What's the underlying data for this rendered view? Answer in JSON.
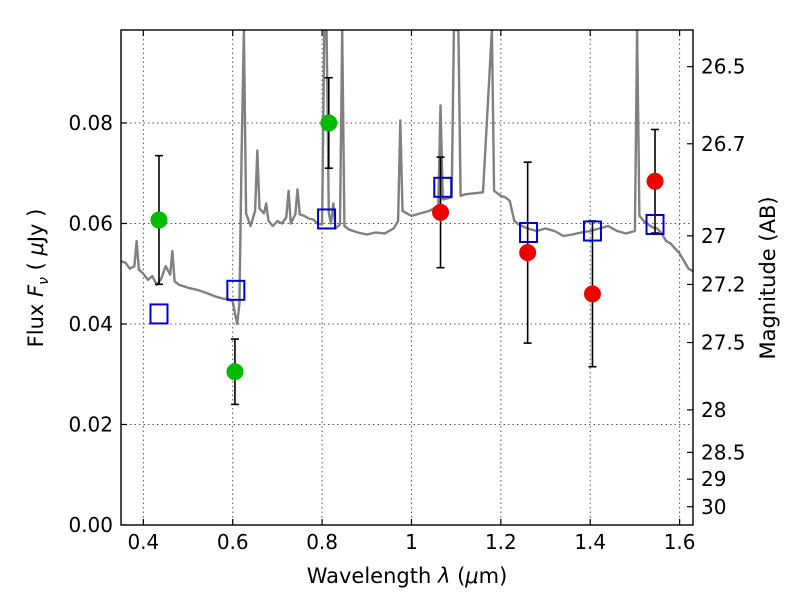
{
  "chart_data": {
    "type": "scatter",
    "title": "",
    "xlabel": "Wavelength  λ (μm)",
    "ylabel": "Flux  F_ν  ( μJy )",
    "ylabel_parts": [
      "Flux  ",
      "F",
      "ν",
      "  ( ",
      "μ",
      "Jy )"
    ],
    "xlabel_parts": [
      "Wavelength  ",
      "λ",
      " (",
      "μ",
      "m)"
    ],
    "y2label": "Magnitude (AB)",
    "xlim": [
      0.35,
      1.63
    ],
    "ylim": [
      0.0,
      0.0985
    ],
    "grid": true,
    "x_ticks": [
      {
        "value": 0.4,
        "label": "0.4"
      },
      {
        "value": 0.6,
        "label": "0.6"
      },
      {
        "value": 0.8,
        "label": "0.8"
      },
      {
        "value": 1.0,
        "label": "1"
      },
      {
        "value": 1.2,
        "label": "1.2"
      },
      {
        "value": 1.4,
        "label": "1.4"
      },
      {
        "value": 1.6,
        "label": "1.6"
      }
    ],
    "y_ticks": [
      {
        "value": 0.0,
        "label": "0.00"
      },
      {
        "value": 0.02,
        "label": "0.02"
      },
      {
        "value": 0.04,
        "label": "0.04"
      },
      {
        "value": 0.06,
        "label": "0.06"
      },
      {
        "value": 0.08,
        "label": "0.08"
      }
    ],
    "y2_ticks": [
      {
        "value": 26.5,
        "label": "26.5"
      },
      {
        "value": 26.7,
        "label": "26.7"
      },
      {
        "value": 27,
        "label": "27"
      },
      {
        "value": 27.2,
        "label": "27.2"
      },
      {
        "value": 27.5,
        "label": "27.5"
      },
      {
        "value": 28,
        "label": "28"
      },
      {
        "value": 28.5,
        "label": "28.5"
      },
      {
        "value": 29,
        "label": "29"
      },
      {
        "value": 30,
        "label": "30"
      }
    ],
    "colors": {
      "spectrum": "#808080",
      "green_points": "#00bb00",
      "red_points": "#ee0000",
      "model_squares": "#0000cc",
      "error_bars": "#000000"
    },
    "series": [
      {
        "marker": "circle",
        "color": "#00bb00",
        "points": [
          {
            "x": 0.435,
            "y": 0.0607,
            "yerr": 0.0128
          },
          {
            "x": 0.605,
            "y": 0.0305,
            "yerr": 0.0065
          },
          {
            "x": 0.815,
            "y": 0.08,
            "yerr": 0.009
          }
        ]
      },
      {
        "marker": "circle",
        "color": "#ee0000",
        "points": [
          {
            "x": 1.065,
            "y": 0.0622,
            "yerr": 0.011
          },
          {
            "x": 1.26,
            "y": 0.0542,
            "yerr": 0.018
          },
          {
            "x": 1.405,
            "y": 0.046,
            "yerr": 0.0145
          },
          {
            "x": 1.545,
            "y": 0.0684,
            "yerr": 0.0103
          }
        ]
      },
      {
        "marker": "square",
        "color": "#0000cc",
        "points": [
          {
            "x": 0.435,
            "y": 0.042
          },
          {
            "x": 0.607,
            "y": 0.0467
          },
          {
            "x": 0.81,
            "y": 0.0609
          },
          {
            "x": 1.07,
            "y": 0.0672
          },
          {
            "x": 1.262,
            "y": 0.0582
          },
          {
            "x": 1.405,
            "y": 0.0585
          },
          {
            "x": 1.545,
            "y": 0.0598
          }
        ]
      },
      {
        "type": "line",
        "color": "#808080",
        "points": [
          [
            0.35,
            0.0525
          ],
          [
            0.36,
            0.0522
          ],
          [
            0.37,
            0.051
          ],
          [
            0.38,
            0.0515
          ],
          [
            0.385,
            0.0565
          ],
          [
            0.39,
            0.0508
          ],
          [
            0.4,
            0.05
          ],
          [
            0.41,
            0.0488
          ],
          [
            0.42,
            0.0495
          ],
          [
            0.43,
            0.0478
          ],
          [
            0.44,
            0.049
          ],
          [
            0.45,
            0.0515
          ],
          [
            0.46,
            0.0498
          ],
          [
            0.465,
            0.0545
          ],
          [
            0.47,
            0.0485
          ],
          [
            0.48,
            0.0478
          ],
          [
            0.5,
            0.0472
          ],
          [
            0.52,
            0.0468
          ],
          [
            0.54,
            0.0462
          ],
          [
            0.56,
            0.0455
          ],
          [
            0.58,
            0.045
          ],
          [
            0.59,
            0.045
          ],
          [
            0.6,
            0.0445
          ],
          [
            0.605,
            0.042
          ],
          [
            0.61,
            0.04
          ],
          [
            0.615,
            0.044
          ],
          [
            0.62,
            0.075
          ],
          [
            0.625,
            0.0985
          ],
          [
            0.63,
            0.062
          ],
          [
            0.64,
            0.0595
          ],
          [
            0.65,
            0.0625
          ],
          [
            0.655,
            0.0745
          ],
          [
            0.66,
            0.063
          ],
          [
            0.67,
            0.062
          ],
          [
            0.675,
            0.064
          ],
          [
            0.68,
            0.0605
          ],
          [
            0.69,
            0.0595
          ],
          [
            0.7,
            0.0605
          ],
          [
            0.71,
            0.06
          ],
          [
            0.72,
            0.0612
          ],
          [
            0.725,
            0.0665
          ],
          [
            0.73,
            0.06
          ],
          [
            0.74,
            0.0618
          ],
          [
            0.745,
            0.0668
          ],
          [
            0.75,
            0.0618
          ],
          [
            0.76,
            0.0615
          ],
          [
            0.77,
            0.061
          ],
          [
            0.78,
            0.0608
          ],
          [
            0.79,
            0.06
          ],
          [
            0.8,
            0.0598
          ],
          [
            0.805,
            0.0985
          ],
          [
            0.81,
            0.0985
          ],
          [
            0.815,
            0.062
          ],
          [
            0.82,
            0.06
          ],
          [
            0.825,
            0.064
          ],
          [
            0.83,
            0.059
          ],
          [
            0.84,
            0.0598
          ],
          [
            0.845,
            0.0985
          ],
          [
            0.85,
            0.0595
          ],
          [
            0.86,
            0.0588
          ],
          [
            0.88,
            0.0582
          ],
          [
            0.9,
            0.0578
          ],
          [
            0.92,
            0.0582
          ],
          [
            0.94,
            0.058
          ],
          [
            0.96,
            0.059
          ],
          [
            0.97,
            0.0605
          ],
          [
            0.975,
            0.0805
          ],
          [
            0.98,
            0.0625
          ],
          [
            1.0,
            0.0615
          ],
          [
            1.02,
            0.062
          ],
          [
            1.04,
            0.0625
          ],
          [
            1.05,
            0.063
          ],
          [
            1.06,
            0.0635
          ],
          [
            1.065,
            0.0835
          ],
          [
            1.07,
            0.0648
          ],
          [
            1.08,
            0.065
          ],
          [
            1.09,
            0.0652
          ],
          [
            1.095,
            0.0985
          ],
          [
            1.1,
            0.0985
          ],
          [
            1.105,
            0.0985
          ],
          [
            1.11,
            0.0655
          ],
          [
            1.12,
            0.0658
          ],
          [
            1.14,
            0.066
          ],
          [
            1.16,
            0.0662
          ],
          [
            1.18,
            0.0985
          ],
          [
            1.185,
            0.0665
          ],
          [
            1.2,
            0.0655
          ],
          [
            1.21,
            0.0652
          ],
          [
            1.22,
            0.0645
          ],
          [
            1.23,
            0.0605
          ],
          [
            1.24,
            0.0598
          ],
          [
            1.26,
            0.059
          ],
          [
            1.28,
            0.0585
          ],
          [
            1.3,
            0.059
          ],
          [
            1.32,
            0.0585
          ],
          [
            1.34,
            0.0575
          ],
          [
            1.36,
            0.0578
          ],
          [
            1.38,
            0.0582
          ],
          [
            1.4,
            0.0585
          ],
          [
            1.42,
            0.059
          ],
          [
            1.44,
            0.0595
          ],
          [
            1.46,
            0.0585
          ],
          [
            1.48,
            0.058
          ],
          [
            1.5,
            0.0585
          ],
          [
            1.505,
            0.0985
          ],
          [
            1.51,
            0.0615
          ],
          [
            1.52,
            0.0605
          ],
          [
            1.53,
            0.0598
          ],
          [
            1.54,
            0.0592
          ],
          [
            1.55,
            0.059
          ],
          [
            1.56,
            0.058
          ],
          [
            1.57,
            0.0565
          ],
          [
            1.58,
            0.056
          ],
          [
            1.6,
            0.054
          ],
          [
            1.62,
            0.051
          ],
          [
            1.63,
            0.0505
          ]
        ]
      }
    ]
  }
}
